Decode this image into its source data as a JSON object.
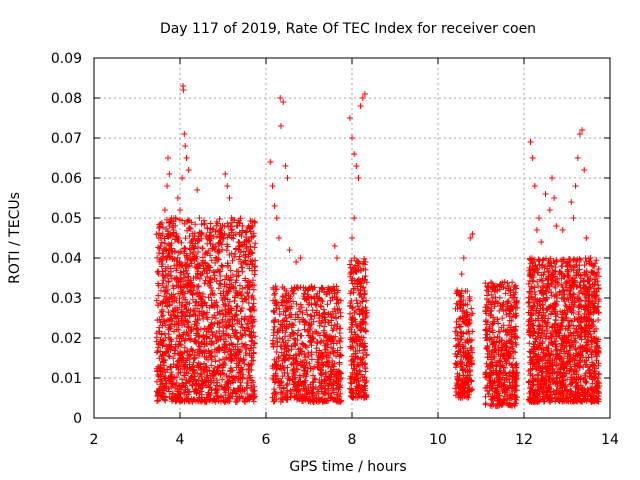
{
  "chart_data": {
    "type": "scatter",
    "title": "Day 117 of 2019, Rate Of TEC Index for receiver coen",
    "xlabel": "GPS time / hours",
    "ylabel": "ROTI / TECUs",
    "xlim": [
      2,
      14
    ],
    "ylim": [
      0,
      0.09
    ],
    "xticks": [
      2,
      4,
      6,
      8,
      10,
      12,
      14
    ],
    "xtick_labels": [
      "2",
      "4",
      "6",
      "8",
      "10",
      "12",
      "14"
    ],
    "yticks": [
      0,
      0.01,
      0.02,
      0.03,
      0.04,
      0.05,
      0.06,
      0.07,
      0.08,
      0.09
    ],
    "ytick_labels": [
      "0",
      "0.01",
      "0.02",
      "0.03",
      "0.04",
      "0.05",
      "0.06",
      "0.07",
      "0.08",
      "0.09"
    ],
    "grid": true,
    "marker": "+",
    "color": "#ff0000",
    "clusters": [
      {
        "x_range": [
          3.45,
          5.75
        ],
        "y_range": [
          0.004,
          0.05
        ],
        "count": 1700
      },
      {
        "x_range": [
          6.15,
          7.75
        ],
        "y_range": [
          0.004,
          0.033
        ],
        "count": 800
      },
      {
        "x_range": [
          7.95,
          8.35
        ],
        "y_range": [
          0.005,
          0.04
        ],
        "count": 300
      },
      {
        "x_range": [
          10.4,
          10.8
        ],
        "y_range": [
          0.005,
          0.032
        ],
        "count": 250
      },
      {
        "x_range": [
          11.1,
          11.85
        ],
        "y_range": [
          0.003,
          0.034
        ],
        "count": 500
      },
      {
        "x_range": [
          12.1,
          13.75
        ],
        "y_range": [
          0.004,
          0.04
        ],
        "count": 1400
      }
    ],
    "notable_points": [
      [
        3.55,
        0.043
      ],
      [
        3.6,
        0.046
      ],
      [
        3.65,
        0.052
      ],
      [
        3.7,
        0.058
      ],
      [
        3.72,
        0.065
      ],
      [
        3.75,
        0.061
      ],
      [
        3.8,
        0.05
      ],
      [
        3.85,
        0.047
      ],
      [
        3.9,
        0.05
      ],
      [
        3.95,
        0.055
      ],
      [
        4.0,
        0.052
      ],
      [
        4.05,
        0.06
      ],
      [
        4.07,
        0.083
      ],
      [
        4.08,
        0.082
      ],
      [
        4.1,
        0.071
      ],
      [
        4.12,
        0.068
      ],
      [
        4.15,
        0.065
      ],
      [
        4.2,
        0.062
      ],
      [
        4.4,
        0.057
      ],
      [
        4.45,
        0.05
      ],
      [
        4.65,
        0.045
      ],
      [
        4.9,
        0.042
      ],
      [
        5.05,
        0.061
      ],
      [
        5.1,
        0.058
      ],
      [
        5.15,
        0.055
      ],
      [
        5.2,
        0.05
      ],
      [
        5.3,
        0.046
      ],
      [
        5.45,
        0.048
      ],
      [
        5.5,
        0.044
      ],
      [
        5.6,
        0.042
      ],
      [
        6.1,
        0.064
      ],
      [
        6.15,
        0.058
      ],
      [
        6.2,
        0.053
      ],
      [
        6.25,
        0.05
      ],
      [
        6.3,
        0.045
      ],
      [
        6.33,
        0.08
      ],
      [
        6.35,
        0.073
      ],
      [
        6.4,
        0.079
      ],
      [
        6.45,
        0.063
      ],
      [
        6.5,
        0.06
      ],
      [
        6.55,
        0.042
      ],
      [
        6.7,
        0.039
      ],
      [
        6.8,
        0.04
      ],
      [
        7.6,
        0.043
      ],
      [
        7.65,
        0.04
      ],
      [
        7.95,
        0.075
      ],
      [
        8.0,
        0.07
      ],
      [
        8.05,
        0.066
      ],
      [
        8.1,
        0.063
      ],
      [
        8.15,
        0.06
      ],
      [
        8.2,
        0.078
      ],
      [
        8.25,
        0.08
      ],
      [
        8.3,
        0.081
      ],
      [
        8.05,
        0.05
      ],
      [
        8.0,
        0.045
      ],
      [
        10.55,
        0.036
      ],
      [
        10.6,
        0.04
      ],
      [
        10.75,
        0.045
      ],
      [
        10.8,
        0.046
      ],
      [
        11.55,
        0.034
      ],
      [
        11.65,
        0.033
      ],
      [
        12.15,
        0.069
      ],
      [
        12.2,
        0.065
      ],
      [
        12.25,
        0.058
      ],
      [
        12.3,
        0.047
      ],
      [
        12.35,
        0.05
      ],
      [
        12.4,
        0.044
      ],
      [
        12.5,
        0.056
      ],
      [
        12.6,
        0.052
      ],
      [
        12.65,
        0.06
      ],
      [
        12.7,
        0.055
      ],
      [
        12.75,
        0.048
      ],
      [
        12.9,
        0.047
      ],
      [
        13.1,
        0.054
      ],
      [
        13.15,
        0.05
      ],
      [
        13.2,
        0.058
      ],
      [
        13.25,
        0.065
      ],
      [
        13.3,
        0.071
      ],
      [
        13.35,
        0.072
      ],
      [
        13.4,
        0.062
      ],
      [
        13.45,
        0.045
      ],
      [
        13.55,
        0.04
      ],
      [
        13.6,
        0.038
      ],
      [
        13.65,
        0.035
      ]
    ]
  }
}
